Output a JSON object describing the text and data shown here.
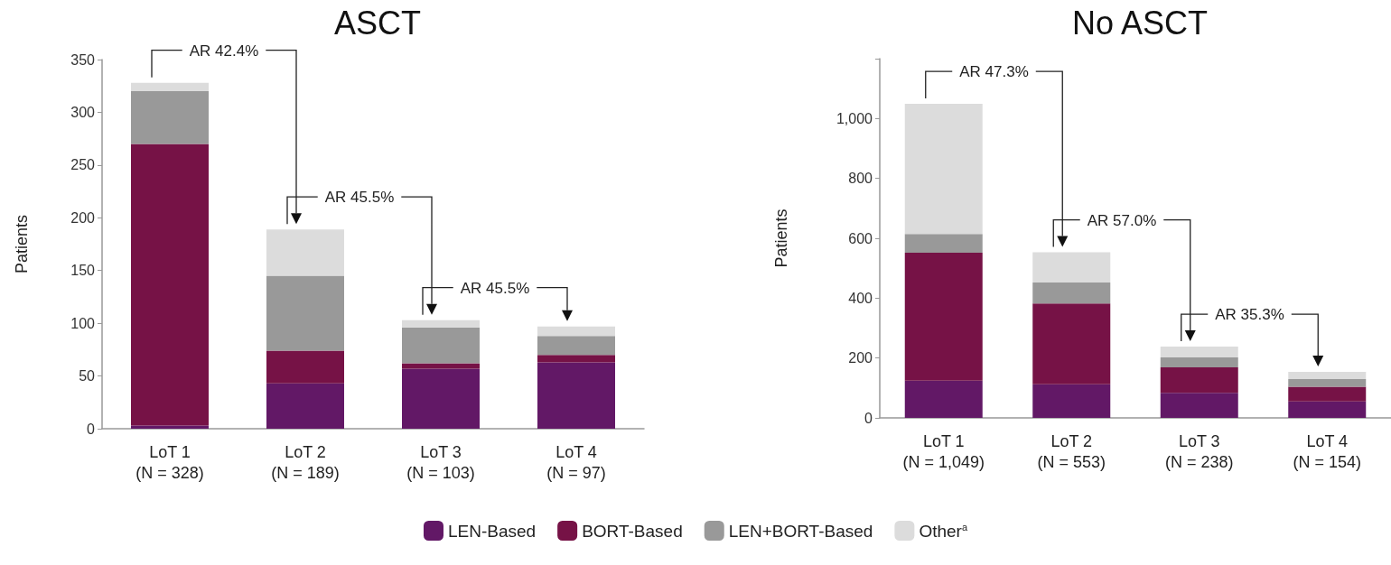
{
  "chart_data": [
    {
      "type": "bar",
      "title": "ASCT",
      "ylabel": "Patients",
      "stacked": true,
      "grid": false,
      "legend": "bottom",
      "categories": [
        "LoT 1\n(N = 328)",
        "LoT 2\n(N = 189)",
        "LoT 3\n(N = 103)",
        "LoT 4\n(N = 97)"
      ],
      "series": [
        {
          "name": "LEN-Based",
          "color": "#621866",
          "values": [
            3,
            43,
            57,
            63
          ]
        },
        {
          "name": "BORT-Based",
          "color": "#761246",
          "values": [
            267,
            31,
            5,
            7
          ]
        },
        {
          "name": "LEN+BORT-Based",
          "color": "#999999",
          "values": [
            50,
            71,
            34,
            18
          ]
        },
        {
          "name": "Other$^{a}$",
          "color": "#dcdcdc",
          "values": [
            8,
            44,
            7,
            9
          ]
        }
      ],
      "ylim": [
        0,
        350
      ],
      "yticks": [
        0,
        50,
        100,
        150,
        200,
        250,
        300,
        350
      ],
      "annotations": [
        "AR 42.4%",
        "AR 45.5%",
        "AR 45.5%"
      ]
    },
    {
      "type": "bar",
      "title": "No ASCT",
      "ylabel": "Patients",
      "stacked": true,
      "grid": false,
      "legend": "bottom",
      "categories": [
        "LoT 1\n(N = 1,049)",
        "LoT 2\n(N = 553)",
        "LoT 3\n(N = 238)",
        "LoT 4\n(N = 154)"
      ],
      "series": [
        {
          "name": "LEN-Based",
          "color": "#621866",
          "values": [
            124,
            112,
            84,
            55
          ]
        },
        {
          "name": "BORT-Based",
          "color": "#761246",
          "values": [
            428,
            270,
            85,
            49
          ]
        },
        {
          "name": "LEN+BORT-Based",
          "color": "#999999",
          "values": [
            62,
            70,
            33,
            26
          ]
        },
        {
          "name": "Other$^{a}$",
          "color": "#dcdcdc",
          "values": [
            435,
            101,
            36,
            24
          ]
        }
      ],
      "ylim": [
        0,
        1200
      ],
      "yticks": [
        0,
        200,
        400,
        600,
        800,
        {
          "value": 1000,
          "label": "1,000"
        },
        {
          "value": 1200,
          "label": null
        }
      ],
      "annotations": [
        "AR 47.3%",
        "AR 57.0%",
        "AR 35.3%"
      ]
    }
  ]
}
